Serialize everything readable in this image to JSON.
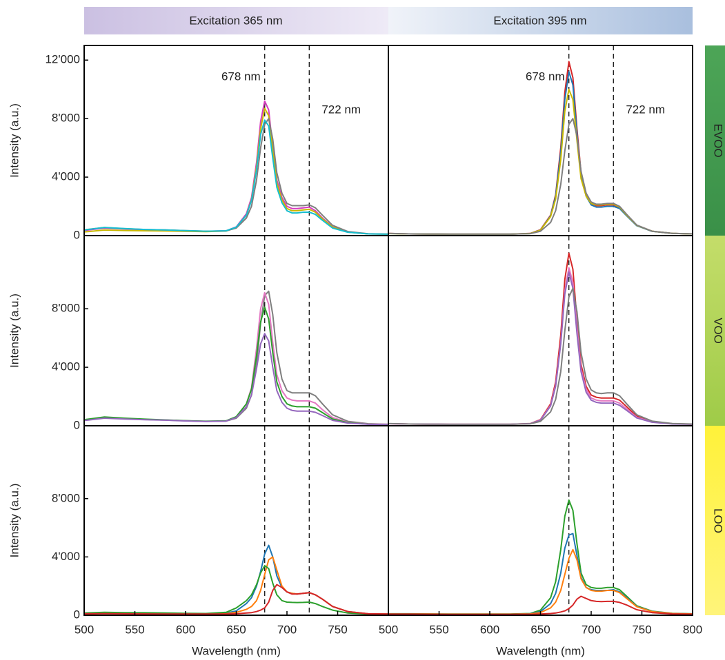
{
  "column_titles": [
    "Excitation 365 nm",
    "Excitation 395 nm"
  ],
  "row_labels": [
    "EVOO",
    "VOO",
    "LOO"
  ],
  "chart_data": [
    {
      "type": "line",
      "xlim": [
        500,
        800
      ],
      "ylim": [
        0,
        13000
      ],
      "yticks": [
        0,
        {
          "value": 4000,
          "label": "4'000"
        },
        {
          "value": 8000,
          "label": "8'000"
        },
        {
          "value": 12000,
          "label": "12'000"
        }
      ],
      "ylabel": "Intensity (a.u.)",
      "vlines": [
        678,
        722
      ],
      "annotations": [
        "678 nm",
        "722 nm"
      ],
      "x": [
        500,
        520,
        540,
        560,
        580,
        600,
        620,
        640,
        650,
        660,
        665,
        670,
        674,
        678,
        682,
        686,
        690,
        695,
        700,
        705,
        710,
        716,
        722,
        728,
        735,
        745,
        760,
        780,
        800
      ],
      "series": [
        {
          "color": "#d63cbf",
          "values": [
            350,
            520,
            450,
            400,
            380,
            330,
            290,
            330,
            600,
            1500,
            2600,
            5000,
            7800,
            9200,
            8600,
            6000,
            3800,
            2600,
            2000,
            1850,
            1850,
            1900,
            1950,
            1700,
            1200,
            600,
            250,
            120,
            100
          ]
        },
        {
          "color": "#c9b800",
          "values": [
            250,
            380,
            350,
            330,
            320,
            290,
            270,
            310,
            560,
            1400,
            2450,
            4700,
            7300,
            8700,
            8200,
            5800,
            3600,
            2450,
            1850,
            1700,
            1700,
            1750,
            1800,
            1600,
            1150,
            580,
            240,
            120,
            100
          ]
        },
        {
          "color": "#7f7f7f",
          "values": [
            400,
            550,
            470,
            420,
            390,
            340,
            300,
            320,
            520,
            1200,
            2000,
            3800,
            6000,
            7600,
            8000,
            6600,
            4300,
            2900,
            2200,
            2050,
            2050,
            2050,
            2100,
            1900,
            1400,
            700,
            280,
            130,
            100
          ]
        },
        {
          "color": "#17becf",
          "values": [
            380,
            560,
            480,
            420,
            390,
            340,
            300,
            330,
            580,
            1400,
            2400,
            4500,
            6900,
            7900,
            7500,
            5300,
            3300,
            2250,
            1700,
            1550,
            1550,
            1600,
            1600,
            1450,
            1050,
            520,
            230,
            120,
            100
          ]
        }
      ]
    },
    {
      "type": "line",
      "xlim": [
        500,
        800
      ],
      "ylim": [
        0,
        13000
      ],
      "vlines": [
        678,
        722
      ],
      "annotations": [
        "678 nm",
        "722 nm"
      ],
      "x": [
        500,
        520,
        540,
        560,
        580,
        600,
        620,
        640,
        650,
        660,
        665,
        670,
        674,
        678,
        682,
        686,
        690,
        695,
        700,
        705,
        710,
        716,
        722,
        728,
        735,
        745,
        760,
        780,
        800
      ],
      "series": [
        {
          "color": "#d62728",
          "values": [
            150,
            120,
            110,
            100,
            100,
            100,
            100,
            150,
            400,
            1400,
            2800,
            6000,
            9800,
            11900,
            10800,
            7300,
            4300,
            2800,
            2200,
            2050,
            2050,
            2100,
            2100,
            1900,
            1400,
            700,
            300,
            150,
            120
          ]
        },
        {
          "color": "#1f77b4",
          "values": [
            140,
            120,
            110,
            100,
            100,
            100,
            100,
            140,
            380,
            1350,
            2700,
            5700,
            9300,
            11200,
            10300,
            7000,
            4100,
            2700,
            2100,
            1950,
            1950,
            2000,
            2000,
            1850,
            1350,
            680,
            290,
            150,
            120
          ]
        },
        {
          "color": "#c9b800",
          "values": [
            140,
            120,
            110,
            100,
            100,
            100,
            100,
            140,
            370,
            1300,
            2500,
            5200,
            8500,
            10000,
            9300,
            6500,
            3900,
            2700,
            2200,
            2100,
            2100,
            2150,
            2150,
            1950,
            1400,
            700,
            300,
            150,
            120
          ]
        },
        {
          "color": "#7f7f7f",
          "values": [
            150,
            120,
            110,
            100,
            100,
            100,
            100,
            130,
            300,
            900,
            1700,
            3500,
            5800,
            7600,
            8000,
            6800,
            4400,
            2900,
            2300,
            2150,
            2150,
            2200,
            2200,
            2000,
            1450,
            720,
            300,
            150,
            120
          ]
        }
      ]
    },
    {
      "type": "line",
      "xlim": [
        500,
        800
      ],
      "ylim": [
        0,
        13000
      ],
      "yticks": [
        0,
        {
          "value": 4000,
          "label": "4'000"
        },
        {
          "value": 8000,
          "label": "8'000"
        }
      ],
      "ylabel": "Intensity (a.u.)",
      "vlines": [
        678,
        722
      ],
      "x": [
        500,
        520,
        540,
        560,
        580,
        600,
        620,
        640,
        650,
        660,
        665,
        670,
        674,
        678,
        682,
        686,
        690,
        695,
        700,
        705,
        710,
        716,
        722,
        728,
        735,
        745,
        760,
        780,
        800
      ],
      "series": [
        {
          "color": "#7f7f7f",
          "values": [
            400,
            550,
            480,
            430,
            390,
            340,
            300,
            320,
            520,
            1200,
            2100,
            4200,
            7000,
            8900,
            9200,
            7600,
            5000,
            3200,
            2400,
            2250,
            2250,
            2250,
            2250,
            2050,
            1500,
            750,
            300,
            140,
            100
          ]
        },
        {
          "color": "#e377c2",
          "values": [
            380,
            560,
            490,
            430,
            390,
            340,
            300,
            330,
            600,
            1500,
            2600,
            5300,
            8000,
            9100,
            8300,
            5700,
            3500,
            2400,
            1900,
            1750,
            1700,
            1700,
            1700,
            1550,
            1100,
            560,
            240,
            120,
            100
          ]
        },
        {
          "color": "#2ca02c",
          "values": [
            420,
            600,
            520,
            450,
            400,
            350,
            310,
            340,
            620,
            1500,
            2500,
            4800,
            7100,
            8100,
            7300,
            5000,
            3000,
            2000,
            1500,
            1350,
            1300,
            1300,
            1300,
            1200,
            900,
            460,
            210,
            110,
            90
          ]
        },
        {
          "color": "#9467bd",
          "values": [
            360,
            520,
            460,
            410,
            380,
            330,
            290,
            320,
            560,
            1300,
            2100,
            3900,
            5600,
            6300,
            5800,
            4000,
            2400,
            1600,
            1200,
            1050,
            1000,
            1000,
            1000,
            920,
            700,
            370,
            180,
            100,
            80
          ]
        }
      ]
    },
    {
      "type": "line",
      "xlim": [
        500,
        800
      ],
      "ylim": [
        0,
        13000
      ],
      "vlines": [
        678,
        722
      ],
      "x": [
        500,
        520,
        540,
        560,
        580,
        600,
        620,
        640,
        650,
        660,
        665,
        670,
        674,
        678,
        682,
        686,
        690,
        695,
        700,
        705,
        710,
        716,
        722,
        728,
        735,
        745,
        760,
        780,
        800
      ],
      "series": [
        {
          "color": "#d62728",
          "values": [
            140,
            120,
            110,
            100,
            100,
            100,
            100,
            150,
            420,
            1500,
            3000,
            6200,
            10000,
            11800,
            10700,
            7200,
            4200,
            2700,
            2100,
            1950,
            1900,
            1900,
            1900,
            1750,
            1300,
            650,
            280,
            140,
            110
          ]
        },
        {
          "color": "#e377c2",
          "values": [
            140,
            120,
            110,
            100,
            100,
            100,
            100,
            140,
            400,
            1400,
            2800,
            5700,
            9200,
            10800,
            9800,
            6700,
            3900,
            2500,
            1900,
            1750,
            1700,
            1700,
            1700,
            1550,
            1150,
            580,
            260,
            130,
            100
          ]
        },
        {
          "color": "#9467bd",
          "values": [
            140,
            120,
            110,
            100,
            100,
            100,
            100,
            140,
            380,
            1350,
            2700,
            5600,
            9000,
            10500,
            9400,
            6300,
            3700,
            2300,
            1750,
            1600,
            1550,
            1550,
            1550,
            1400,
            1050,
            530,
            240,
            120,
            100
          ]
        },
        {
          "color": "#7f7f7f",
          "values": [
            150,
            120,
            110,
            100,
            100,
            100,
            100,
            130,
            300,
            950,
            1800,
            3700,
            6500,
            8800,
            9400,
            7800,
            5000,
            3200,
            2450,
            2250,
            2200,
            2250,
            2250,
            2050,
            1500,
            750,
            320,
            150,
            120
          ]
        }
      ]
    },
    {
      "type": "line",
      "xlim": [
        500,
        800
      ],
      "ylim": [
        0,
        13000
      ],
      "xticks": [
        500,
        550,
        600,
        650,
        700,
        750
      ],
      "yticks": [
        0,
        {
          "value": 4000,
          "label": "4'000"
        },
        {
          "value": 8000,
          "label": "8'000"
        }
      ],
      "xlabel": "Wavelength (nm)",
      "ylabel": "Intensity (a.u.)",
      "vlines": [
        678,
        722
      ],
      "x": [
        500,
        520,
        540,
        560,
        580,
        600,
        620,
        640,
        650,
        660,
        665,
        670,
        674,
        678,
        682,
        686,
        690,
        695,
        700,
        705,
        710,
        716,
        722,
        728,
        735,
        745,
        760,
        780,
        800
      ],
      "series": [
        {
          "color": "#1f77b4",
          "values": [
            100,
            150,
            130,
            120,
            110,
            100,
            100,
            150,
            300,
            800,
            1200,
            2000,
            3000,
            4200,
            4800,
            4000,
            2700,
            1900,
            1600,
            1500,
            1450,
            1500,
            1550,
            1400,
            1100,
            600,
            250,
            100,
            80
          ]
        },
        {
          "color": "#ff7f0e",
          "values": [
            80,
            120,
            110,
            100,
            90,
            80,
            80,
            100,
            200,
            400,
            600,
            1000,
            1700,
            2800,
            3800,
            4000,
            3100,
            2000,
            1600,
            1500,
            1450,
            1500,
            1550,
            1400,
            1100,
            600,
            250,
            100,
            80
          ]
        },
        {
          "color": "#2ca02c",
          "values": [
            150,
            200,
            180,
            170,
            150,
            130,
            120,
            200,
            500,
            1000,
            1400,
            2100,
            2900,
            3400,
            3200,
            2200,
            1400,
            1000,
            900,
            880,
            870,
            880,
            900,
            800,
            600,
            350,
            150,
            80,
            60
          ]
        },
        {
          "color": "#d62728",
          "values": [
            100,
            110,
            100,
            90,
            80,
            80,
            80,
            80,
            100,
            150,
            180,
            250,
            350,
            500,
            900,
            1700,
            2100,
            1900,
            1600,
            1450,
            1450,
            1500,
            1550,
            1400,
            1100,
            600,
            250,
            100,
            80
          ]
        }
      ]
    },
    {
      "type": "line",
      "xlim": [
        500,
        800
      ],
      "ylim": [
        0,
        13000
      ],
      "xticks": [
        500,
        550,
        600,
        650,
        700,
        750,
        800
      ],
      "xlabel": "Wavelength (nm)",
      "vlines": [
        678,
        722
      ],
      "x": [
        500,
        520,
        540,
        560,
        580,
        600,
        620,
        640,
        650,
        660,
        665,
        670,
        674,
        678,
        682,
        686,
        690,
        695,
        700,
        705,
        710,
        716,
        722,
        728,
        735,
        745,
        760,
        780,
        800
      ],
      "series": [
        {
          "color": "#2ca02c",
          "values": [
            100,
            100,
            90,
            80,
            80,
            80,
            80,
            120,
            350,
            1200,
            2300,
            4500,
            6800,
            7900,
            7200,
            4900,
            2900,
            2100,
            1900,
            1850,
            1850,
            1900,
            1900,
            1750,
            1300,
            650,
            280,
            130,
            100
          ]
        },
        {
          "color": "#1f77b4",
          "values": [
            80,
            80,
            80,
            70,
            70,
            70,
            70,
            100,
            250,
            800,
            1500,
            2900,
            4600,
            5500,
            5600,
            4100,
            2600,
            1900,
            1750,
            1700,
            1700,
            1700,
            1750,
            1600,
            1200,
            600,
            260,
            120,
            90
          ]
        },
        {
          "color": "#ff7f0e",
          "values": [
            80,
            80,
            80,
            70,
            70,
            70,
            70,
            90,
            180,
            500,
            900,
            1700,
            2800,
            3900,
            4500,
            3800,
            2500,
            1900,
            1700,
            1650,
            1650,
            1700,
            1700,
            1550,
            1150,
            580,
            250,
            120,
            90
          ]
        },
        {
          "color": "#d62728",
          "values": [
            70,
            70,
            60,
            60,
            60,
            60,
            60,
            60,
            80,
            120,
            150,
            220,
            300,
            450,
            700,
            1100,
            1300,
            1150,
            1000,
            950,
            930,
            950,
            950,
            880,
            700,
            380,
            180,
            90,
            70
          ]
        }
      ]
    }
  ]
}
